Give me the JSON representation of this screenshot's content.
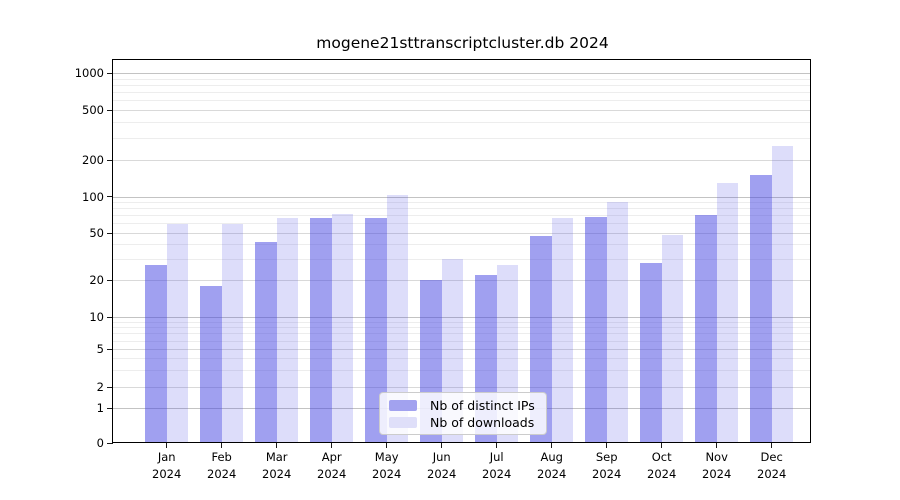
{
  "title": "mogene21sttranscriptcluster.db 2024",
  "chart_data": {
    "type": "bar",
    "title": "mogene21sttranscriptcluster.db 2024",
    "categories": [
      "Jan",
      "Feb",
      "Mar",
      "Apr",
      "May",
      "Jun",
      "Jul",
      "Aug",
      "Sep",
      "Oct",
      "Nov",
      "Dec"
    ],
    "year_label": "2024",
    "series": [
      {
        "name": "Nb of distinct IPs",
        "color": "#a2a2ef",
        "values": [
          27,
          18,
          42,
          66,
          67,
          20,
          22,
          47,
          68,
          28,
          71,
          150
        ]
      },
      {
        "name": "Nb of downloads",
        "color": "#dfdff9",
        "values": [
          59,
          59,
          67,
          72,
          103,
          30,
          27,
          66,
          90,
          48,
          130,
          260
        ]
      }
    ],
    "y_axis": {
      "scale": "log-with-zero",
      "tick_values": [
        0,
        1,
        2,
        5,
        10,
        20,
        50,
        100,
        200,
        500,
        1000
      ],
      "tick_labels": [
        "0",
        "1",
        "2",
        "5",
        "10",
        "20",
        "50",
        "100",
        "200",
        "500",
        "1000"
      ]
    },
    "grid": true,
    "legend_position": "lower center"
  }
}
